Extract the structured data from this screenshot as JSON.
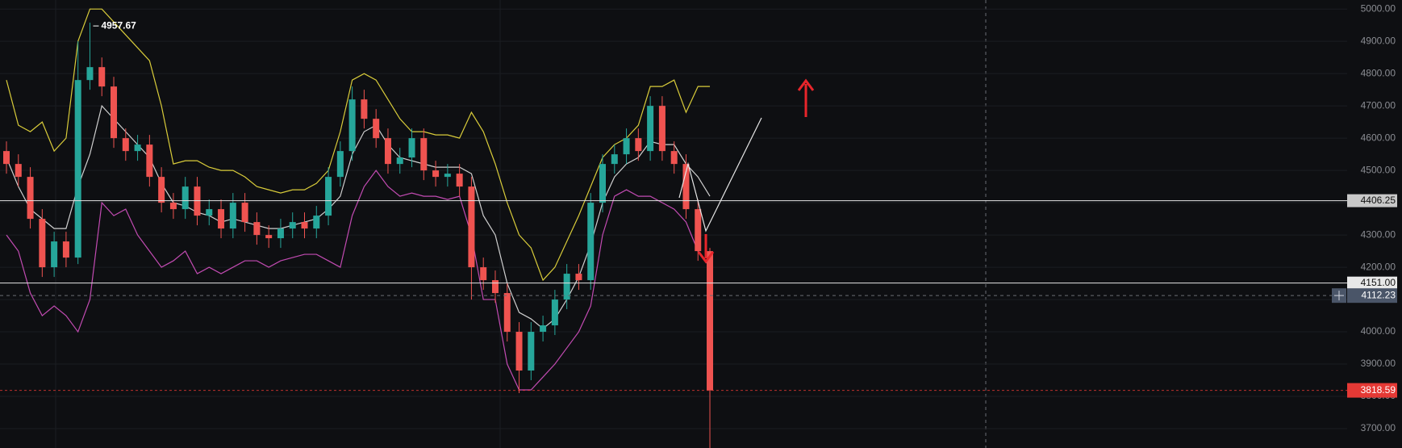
{
  "chart_data": {
    "type": "candlestick",
    "open": [
      4560,
      4520,
      4480,
      4350,
      4200,
      4280,
      4230,
      4780,
      4820,
      4760,
      4600,
      4560,
      4580,
      4480,
      4400,
      4380,
      4450,
      4360,
      4380,
      4320,
      4400,
      4340,
      4300,
      4290,
      4320,
      4340,
      4320,
      4360,
      4480,
      4560,
      4720,
      4660,
      4600,
      4520,
      4540,
      4600,
      4500,
      4480,
      4490,
      4450,
      4200,
      4160,
      4120,
      4000,
      3880,
      4000,
      4020,
      4100,
      4180,
      4160,
      4400,
      4520,
      4550,
      4600,
      4560,
      4700,
      4560,
      4520,
      4380,
      4250
    ],
    "high": [
      4590,
      4550,
      4510,
      4380,
      4310,
      4310,
      4900,
      4957.67,
      4850,
      4790,
      4630,
      4610,
      4610,
      4510,
      4430,
      4480,
      4480,
      4410,
      4410,
      4430,
      4430,
      4370,
      4330,
      4350,
      4370,
      4370,
      4390,
      4510,
      4590,
      4760,
      4750,
      4690,
      4630,
      4570,
      4630,
      4630,
      4530,
      4520,
      4520,
      4480,
      4230,
      4190,
      4150,
      4030,
      4030,
      4050,
      4130,
      4210,
      4210,
      4430,
      4550,
      4580,
      4630,
      4630,
      4730,
      4730,
      4590,
      4550,
      4410,
      4260
    ],
    "low": [
      4490,
      4450,
      4320,
      4170,
      4170,
      4200,
      4210,
      4750,
      4730,
      4570,
      4530,
      4530,
      4450,
      4370,
      4350,
      4350,
      4330,
      4330,
      4290,
      4290,
      4310,
      4270,
      4260,
      4260,
      4290,
      4290,
      4290,
      4330,
      4450,
      4530,
      4630,
      4570,
      4490,
      4490,
      4510,
      4470,
      4450,
      4450,
      4420,
      4100,
      4130,
      4090,
      3970,
      3810,
      3850,
      3970,
      3990,
      4070,
      4130,
      4130,
      4370,
      4490,
      4520,
      4530,
      4530,
      4530,
      4490,
      4350,
      4220,
      3640
    ],
    "close": [
      4520,
      4480,
      4350,
      4200,
      4280,
      4230,
      4780,
      4820,
      4760,
      4600,
      4560,
      4580,
      4480,
      4400,
      4380,
      4450,
      4360,
      4380,
      4320,
      4400,
      4340,
      4300,
      4290,
      4320,
      4340,
      4320,
      4360,
      4480,
      4560,
      4720,
      4660,
      4600,
      4520,
      4540,
      4600,
      4500,
      4480,
      4490,
      4450,
      4200,
      4160,
      4120,
      4000,
      3880,
      4000,
      4020,
      4100,
      4180,
      4160,
      4400,
      4520,
      4550,
      4600,
      4560,
      4700,
      4560,
      4520,
      4380,
      4250,
      3818.59
    ],
    "up_color": "#26a69a",
    "down_color": "#ef5350",
    "bands": [
      {
        "color": "#d9cc3a",
        "values": [
          4780,
          4640,
          4620,
          4650,
          4560,
          4600,
          4900,
          5000,
          5000,
          4960,
          4920,
          4880,
          4840,
          4700,
          4520,
          4530,
          4530,
          4510,
          4500,
          4500,
          4480,
          4450,
          4440,
          4430,
          4440,
          4440,
          4460,
          4500,
          4620,
          4780,
          4800,
          4780,
          4720,
          4660,
          4620,
          4620,
          4610,
          4610,
          4600,
          4680,
          4620,
          4520,
          4400,
          4300,
          4260,
          4160,
          4200,
          4280,
          4360,
          4450,
          4540,
          4580,
          4600,
          4640,
          4760,
          4760,
          4780,
          4680,
          4760,
          4760
        ]
      },
      {
        "color": "#cfcfcf",
        "values": [
          4540,
          4450,
          4380,
          4350,
          4320,
          4320,
          4450,
          4550,
          4700,
          4660,
          4620,
          4580,
          4540,
          4460,
          4400,
          4390,
          4370,
          4360,
          4340,
          4350,
          4340,
          4330,
          4320,
          4320,
          4330,
          4340,
          4350,
          4380,
          4420,
          4550,
          4620,
          4640,
          4580,
          4540,
          4530,
          4520,
          4510,
          4510,
          4510,
          4490,
          4360,
          4300,
          4150,
          4060,
          4040,
          4010,
          4040,
          4100,
          4170,
          4270,
          4400,
          4480,
          4520,
          4540,
          4590,
          4580,
          4580,
          4520,
          4480,
          4420
        ]
      },
      {
        "color": "#c24bb2",
        "values": [
          4300,
          4250,
          4120,
          4050,
          4080,
          4050,
          4000,
          4100,
          4400,
          4360,
          4380,
          4300,
          4250,
          4200,
          4220,
          4250,
          4180,
          4200,
          4180,
          4200,
          4220,
          4220,
          4200,
          4220,
          4230,
          4240,
          4240,
          4220,
          4200,
          4360,
          4450,
          4500,
          4450,
          4420,
          4430,
          4420,
          4420,
          4410,
          4420,
          4300,
          4100,
          4100,
          3900,
          3820,
          3820,
          3860,
          3900,
          3950,
          4000,
          4080,
          4300,
          4420,
          4440,
          4420,
          4420,
          4400,
          4380,
          4340,
          4250,
          4200
        ]
      }
    ],
    "ylim": [
      3640,
      5028
    ],
    "yticks": [
      {
        "value": 3700,
        "label": "3700.00"
      },
      {
        "value": 3800,
        "label": "3800.00"
      },
      {
        "value": 3900,
        "label": "3900.00"
      },
      {
        "value": 4000,
        "label": "4000.00"
      },
      {
        "value": 4100,
        "label": "4100.00"
      },
      {
        "value": 4200,
        "label": "4200.00"
      },
      {
        "value": 4300,
        "label": "4300.00"
      },
      {
        "value": 4400,
        "label": "4400.00"
      },
      {
        "value": 4500,
        "label": "4500.00"
      },
      {
        "value": 4600,
        "label": "4600.00"
      },
      {
        "value": 4700,
        "label": "4700.00"
      },
      {
        "value": 4800,
        "label": "4800.00"
      },
      {
        "value": 4900,
        "label": "4900.00"
      },
      {
        "value": 5000,
        "label": "5000.00"
      }
    ],
    "grid": true,
    "price_lines": [
      {
        "value": 4406.25,
        "label": "4406.25"
      },
      {
        "value": 4151,
        "label": "4151.00"
      }
    ],
    "crosshair": {
      "value": 4112.23,
      "label": "4112.23"
    }
  }
}
